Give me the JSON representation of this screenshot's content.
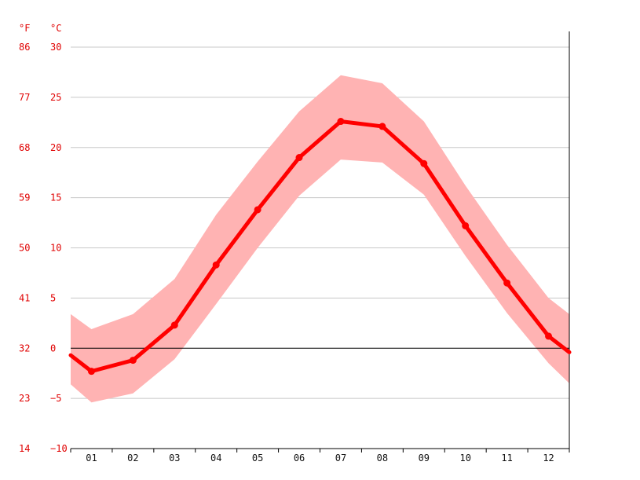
{
  "chart_data": {
    "type": "line",
    "title": "",
    "xlabel": "",
    "ylabel": "",
    "unit_labels": {
      "fahrenheit": "°F",
      "celsius": "°C"
    },
    "categories": [
      "01",
      "02",
      "03",
      "04",
      "05",
      "06",
      "07",
      "08",
      "09",
      "10",
      "11",
      "12"
    ],
    "series": [
      {
        "values": [
          -2.3,
          -1.2,
          2.3,
          8.3,
          13.8,
          19.0,
          22.6,
          22.1,
          18.4,
          12.2,
          6.5,
          1.2
        ]
      },
      {
        "values": [
          1.9,
          3.4,
          6.9,
          13.3,
          18.6,
          23.6,
          27.2,
          26.4,
          22.6,
          16.2,
          10.3,
          5.0
        ]
      },
      {
        "values": [
          -5.4,
          -4.5,
          -1.1,
          4.4,
          10.0,
          15.2,
          18.8,
          18.5,
          15.3,
          9.2,
          3.5,
          -1.5
        ]
      }
    ],
    "edge_values": {
      "start": -0.7,
      "end": -0.4,
      "max_start": 3.4,
      "max_end": 3.4,
      "min_start": -3.6,
      "min_end": -3.5
    },
    "ylim": [
      -10,
      30
    ],
    "yticks_celsius": [
      "30",
      "25",
      "20",
      "15",
      "10",
      "5",
      "0",
      "−5",
      "−10"
    ],
    "yticks_fahrenheit": [
      "86",
      "77",
      "68",
      "59",
      "50",
      "41",
      "32",
      "23",
      "14"
    ],
    "grid": true,
    "legend": "none",
    "colors": {
      "line": "#ff0000",
      "band": "#ffb3b3",
      "grid": "#c8c8c8",
      "zero_line": "#000000",
      "axis_text_y": "#e00000",
      "axis_text_x": "#111111"
    }
  }
}
